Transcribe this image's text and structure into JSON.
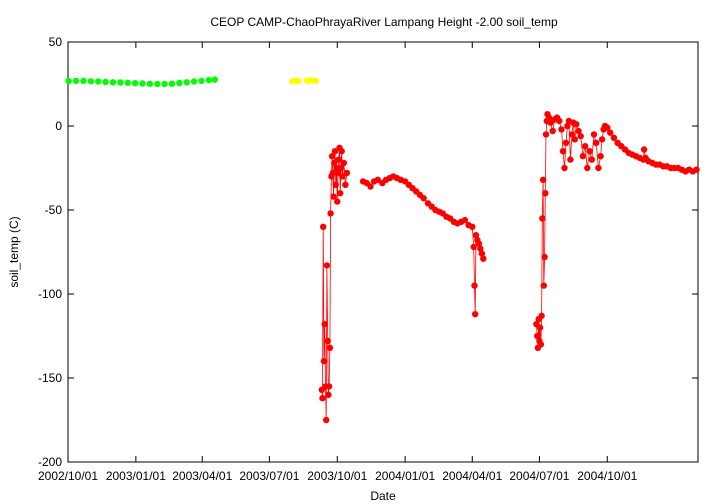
{
  "chart_data": {
    "type": "scatter",
    "title": "CEOP CAMP-ChaoPhrayaRiver Lampang Height -2.00 soil_temp",
    "xlabel": "Date",
    "ylabel": "soil_temp (C)",
    "x_type": "date",
    "xlim": [
      "2002-10-01",
      "2005-02-01"
    ],
    "ylim": [
      -200,
      50
    ],
    "yticks": [
      50,
      0,
      -50,
      -100,
      -150,
      -200
    ],
    "xtick_labels": [
      {
        "date": "2002-10-01",
        "label": "2002/10/01"
      },
      {
        "date": "2003-01-01",
        "label": "2003/01/01"
      },
      {
        "date": "2003-04-01",
        "label": "2003/04/01"
      },
      {
        "date": "2003-07-01",
        "label": "2003/07/01"
      },
      {
        "date": "2003-10-01",
        "label": "2003/10/01"
      },
      {
        "date": "2004-01-01",
        "label": "2004/01/01"
      },
      {
        "date": "2004-04-01",
        "label": "2004/04/01"
      },
      {
        "date": "2004-07-01",
        "label": "2004/07/01"
      },
      {
        "date": "2004-10-01",
        "label": "2004/10/01"
      }
    ],
    "grid": false,
    "legend": "none",
    "series": [
      {
        "color": "#00ff00",
        "connect": false,
        "points": [
          [
            "2002-10-02",
            26.8
          ],
          [
            "2002-10-12",
            26.9
          ],
          [
            "2002-10-22",
            26.9
          ],
          [
            "2002-11-01",
            26.6
          ],
          [
            "2002-11-11",
            26.5
          ],
          [
            "2002-11-21",
            26.2
          ],
          [
            "2002-12-01",
            26.0
          ],
          [
            "2002-12-11",
            25.9
          ],
          [
            "2002-12-21",
            25.7
          ],
          [
            "2002-12-31",
            25.5
          ],
          [
            "2003-01-10",
            25.3
          ],
          [
            "2003-01-20",
            25.1
          ],
          [
            "2003-01-30",
            25.0
          ],
          [
            "2003-02-09",
            25.0
          ],
          [
            "2003-02-19",
            25.2
          ],
          [
            "2003-03-01",
            25.6
          ],
          [
            "2003-03-11",
            26.0
          ],
          [
            "2003-03-21",
            26.5
          ],
          [
            "2003-03-31",
            26.9
          ],
          [
            "2003-04-10",
            27.3
          ],
          [
            "2003-04-18",
            27.6
          ]
        ]
      },
      {
        "color": "#ffff00",
        "connect": false,
        "points": [
          [
            "2003-08-01",
            26.7
          ],
          [
            "2003-08-05",
            26.9
          ],
          [
            "2003-08-09",
            26.8
          ],
          [
            "2003-08-21",
            27.0
          ],
          [
            "2003-08-25",
            27.2
          ],
          [
            "2003-08-29",
            27.0
          ],
          [
            "2003-09-02",
            26.9
          ]
        ]
      },
      {
        "color": "#ff0000",
        "connect": true,
        "segments": [
          [
            [
              "2003-09-10",
              -157
            ],
            [
              "2003-09-11",
              -162
            ],
            [
              "2003-09-12",
              -60
            ],
            [
              "2003-09-13",
              -140
            ],
            [
              "2003-09-14",
              -118
            ],
            [
              "2003-09-15",
              -155
            ],
            [
              "2003-09-16",
              -175
            ],
            [
              "2003-09-17",
              -83
            ],
            [
              "2003-09-18",
              -128
            ],
            [
              "2003-09-19",
              -160
            ],
            [
              "2003-09-20",
              -155
            ],
            [
              "2003-09-21",
              -132
            ],
            [
              "2003-09-22",
              -52
            ],
            [
              "2003-09-23",
              -30
            ],
            [
              "2003-09-24",
              -18
            ],
            [
              "2003-09-25",
              -28
            ],
            [
              "2003-09-26",
              -42
            ],
            [
              "2003-09-27",
              -22
            ],
            [
              "2003-09-28",
              -15
            ],
            [
              "2003-09-29",
              -35
            ],
            [
              "2003-09-30",
              -25
            ],
            [
              "2003-10-01",
              -45
            ],
            [
              "2003-10-02",
              -28
            ],
            [
              "2003-10-03",
              -20
            ],
            [
              "2003-10-04",
              -13
            ],
            [
              "2003-10-05",
              -40
            ],
            [
              "2003-10-06",
              -25
            ],
            [
              "2003-10-07",
              -15
            ],
            [
              "2003-10-08",
              -30
            ],
            [
              "2003-10-10",
              -22
            ],
            [
              "2003-10-12",
              -35
            ],
            [
              "2003-10-14",
              -28
            ]
          ],
          [
            [
              "2003-11-05",
              -33
            ],
            [
              "2003-11-10",
              -34
            ],
            [
              "2003-11-15",
              -36
            ],
            [
              "2003-11-20",
              -33
            ],
            [
              "2003-11-25",
              -32
            ],
            [
              "2003-12-01",
              -34
            ],
            [
              "2003-12-06",
              -32
            ],
            [
              "2003-12-11",
              -31
            ],
            [
              "2003-12-16",
              -30
            ],
            [
              "2003-12-21",
              -31
            ],
            [
              "2003-12-26",
              -32
            ],
            [
              "2004-01-01",
              -33
            ],
            [
              "2004-01-06",
              -35
            ],
            [
              "2004-01-11",
              -37
            ],
            [
              "2004-01-16",
              -39
            ],
            [
              "2004-01-21",
              -41
            ],
            [
              "2004-01-26",
              -43
            ],
            [
              "2004-02-01",
              -46
            ],
            [
              "2004-02-06",
              -48
            ],
            [
              "2004-02-11",
              -50
            ],
            [
              "2004-02-16",
              -51
            ],
            [
              "2004-02-21",
              -52
            ],
            [
              "2004-02-26",
              -54
            ],
            [
              "2004-03-02",
              -55
            ],
            [
              "2004-03-07",
              -57
            ],
            [
              "2004-03-12",
              -58
            ],
            [
              "2004-03-17",
              -57
            ],
            [
              "2004-03-22",
              -56
            ],
            [
              "2004-03-27",
              -59
            ],
            [
              "2004-04-01",
              -60
            ],
            [
              "2004-04-03",
              -72
            ],
            [
              "2004-04-04",
              -95
            ],
            [
              "2004-04-05",
              -112
            ],
            [
              "2004-04-06",
              -65
            ],
            [
              "2004-04-08",
              -68
            ],
            [
              "2004-04-10",
              -70
            ],
            [
              "2004-04-12",
              -73
            ],
            [
              "2004-04-14",
              -76
            ],
            [
              "2004-04-16",
              -79
            ]
          ],
          [
            [
              "2004-06-27",
              -118
            ],
            [
              "2004-06-28",
              -125
            ],
            [
              "2004-06-29",
              -132
            ],
            [
              "2004-06-30",
              -115
            ],
            [
              "2004-07-01",
              -128
            ],
            [
              "2004-07-02",
              -120
            ],
            [
              "2004-07-03",
              -130
            ],
            [
              "2004-07-04",
              -113
            ],
            [
              "2004-07-05",
              -55
            ],
            [
              "2004-07-06",
              -32
            ],
            [
              "2004-07-07",
              -95
            ],
            [
              "2004-07-08",
              -78
            ],
            [
              "2004-07-09",
              -40
            ],
            [
              "2004-07-10",
              -5
            ],
            [
              "2004-07-11",
              3
            ],
            [
              "2004-07-12",
              7
            ],
            [
              "2004-07-14",
              5
            ],
            [
              "2004-07-16",
              2
            ],
            [
              "2004-07-19",
              -3
            ],
            [
              "2004-07-22",
              4
            ],
            [
              "2004-07-25",
              5
            ],
            [
              "2004-07-28",
              3
            ],
            [
              "2004-07-31",
              -2
            ],
            [
              "2004-08-02",
              -15
            ],
            [
              "2004-08-04",
              -25
            ],
            [
              "2004-08-06",
              -10
            ],
            [
              "2004-08-08",
              0
            ],
            [
              "2004-08-10",
              3
            ],
            [
              "2004-08-12",
              -20
            ],
            [
              "2004-08-14",
              -5
            ],
            [
              "2004-08-16",
              2
            ],
            [
              "2004-08-18",
              -8
            ],
            [
              "2004-08-20",
              1
            ],
            [
              "2004-08-23",
              -3
            ],
            [
              "2004-08-26",
              -6
            ],
            [
              "2004-08-29",
              -18
            ],
            [
              "2004-09-01",
              -12
            ],
            [
              "2004-09-04",
              -25
            ],
            [
              "2004-09-07",
              -15
            ],
            [
              "2004-09-10",
              -20
            ],
            [
              "2004-09-13",
              -5
            ],
            [
              "2004-09-16",
              -10
            ],
            [
              "2004-09-19",
              -25
            ],
            [
              "2004-09-22",
              -18
            ],
            [
              "2004-09-24",
              -8
            ],
            [
              "2004-09-26",
              -2
            ],
            [
              "2004-09-28",
              0
            ],
            [
              "2004-10-01",
              -1
            ],
            [
              "2004-10-05",
              -4
            ],
            [
              "2004-10-10",
              -7
            ],
            [
              "2004-10-15",
              -10
            ],
            [
              "2004-10-20",
              -12
            ],
            [
              "2004-10-25",
              -14
            ],
            [
              "2004-10-30",
              -16
            ],
            [
              "2004-11-04",
              -17
            ],
            [
              "2004-11-09",
              -18
            ],
            [
              "2004-11-14",
              -19
            ],
            [
              "2004-11-19",
              -20
            ],
            [
              "2004-11-20",
              -14
            ],
            [
              "2004-11-22",
              -19
            ],
            [
              "2004-11-26",
              -21
            ],
            [
              "2004-12-01",
              -22
            ],
            [
              "2004-12-06",
              -23
            ],
            [
              "2004-12-11",
              -23
            ],
            [
              "2004-12-16",
              -24
            ],
            [
              "2004-12-21",
              -24
            ],
            [
              "2004-12-26",
              -25
            ],
            [
              "2004-12-31",
              -25
            ],
            [
              "2005-01-05",
              -25
            ],
            [
              "2005-01-10",
              -26
            ],
            [
              "2005-01-15",
              -27
            ],
            [
              "2005-01-20",
              -26
            ],
            [
              "2005-01-25",
              -27
            ],
            [
              "2005-01-30",
              -26
            ]
          ]
        ]
      }
    ]
  }
}
